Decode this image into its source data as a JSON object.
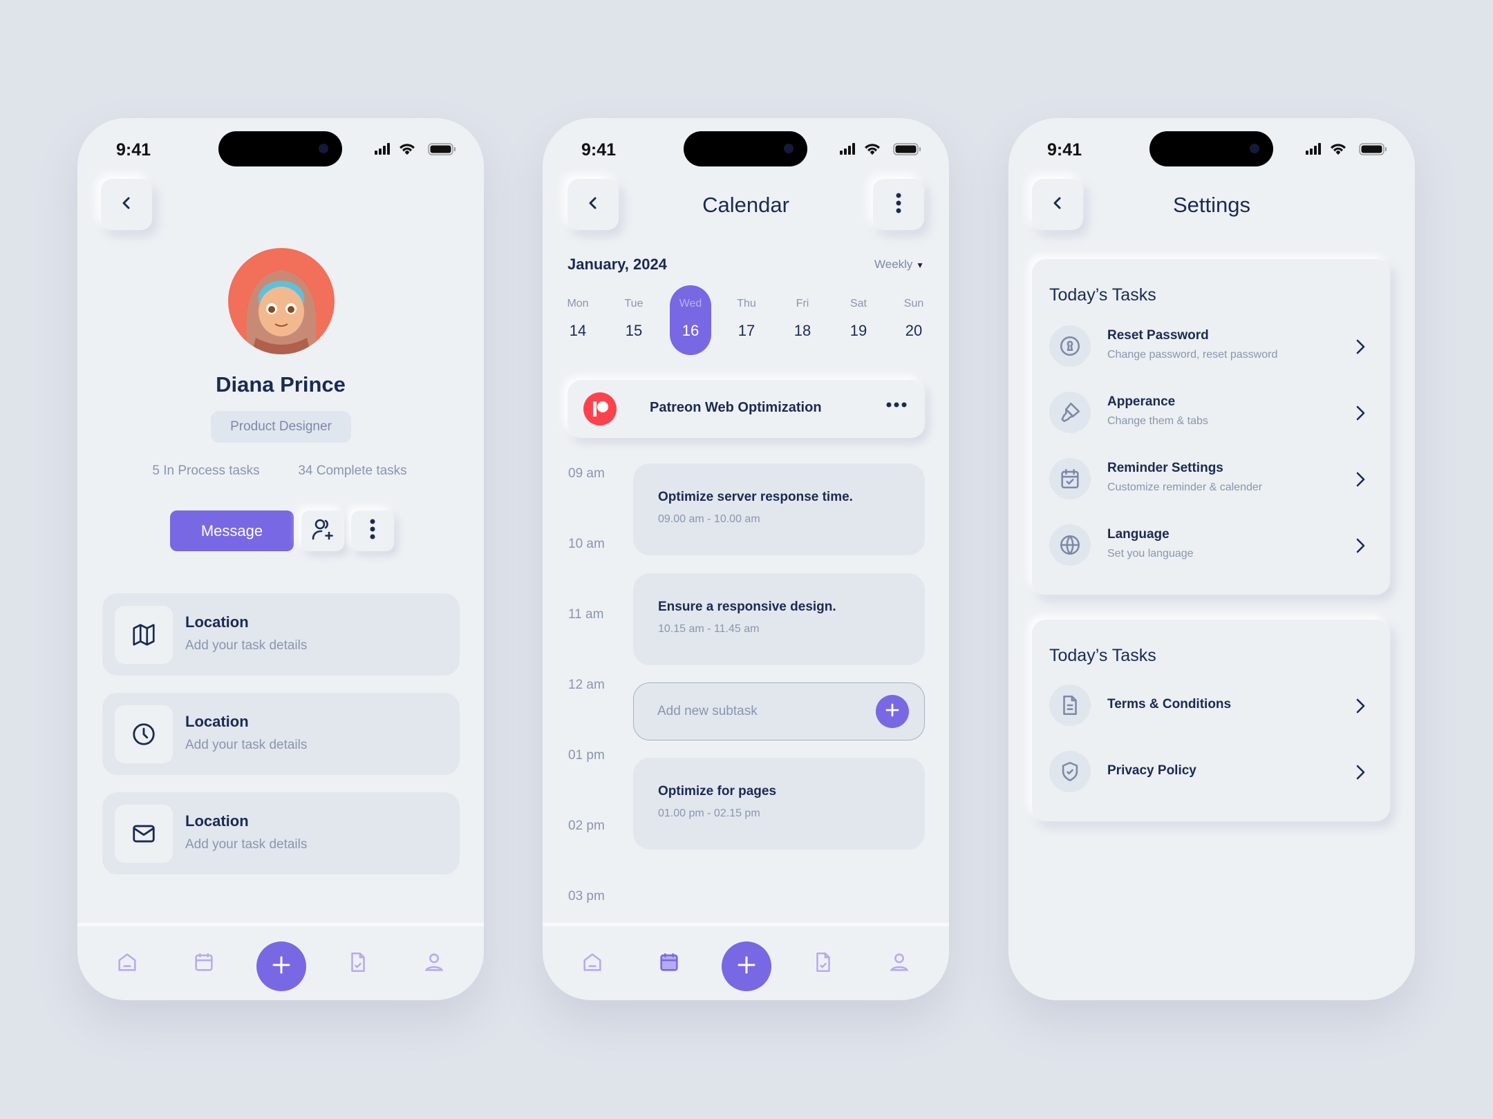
{
  "colors": {
    "accent": "#7868e3",
    "text": "#1b2a52",
    "muted": "#8a95ad",
    "background": "#dfe3ea",
    "patreon": "#fe424d"
  },
  "status_bar": {
    "time": "9:41"
  },
  "profile": {
    "name": "Diana Prince",
    "role": "Product Designer",
    "stats": [
      "5 In Process tasks",
      "34 Complete tasks"
    ],
    "message_label": "Message",
    "cards": [
      {
        "icon": "map-icon",
        "title": "Location",
        "subtitle": "Add your task details"
      },
      {
        "icon": "clock-icon",
        "title": "Location",
        "subtitle": "Add your task details"
      },
      {
        "icon": "mail-icon",
        "title": "Location",
        "subtitle": "Add your task details"
      }
    ]
  },
  "calendar": {
    "title": "Calendar",
    "month": "January, 2024",
    "view": "Weekly",
    "days": [
      {
        "label": "Mon",
        "num": "14"
      },
      {
        "label": "Tue",
        "num": "15"
      },
      {
        "label": "Wed",
        "num": "16",
        "selected": true
      },
      {
        "label": "Thu",
        "num": "17"
      },
      {
        "label": "Fri",
        "num": "18"
      },
      {
        "label": "Sat",
        "num": "19"
      },
      {
        "label": "Sun",
        "num": "20"
      }
    ],
    "project": "Patreon Web Optimization",
    "times": [
      "09 am",
      "10 am",
      "11 am",
      "12 am",
      "01 pm",
      "02 pm",
      "03 pm"
    ],
    "tasks": [
      {
        "title": "Optimize server response time.",
        "time": "09.00 am - 10.00 am"
      },
      {
        "title": "Ensure a responsive design.",
        "time": "10.15 am - 11.45 am"
      },
      {
        "title": "Optimize for pages",
        "time": "01.00 pm - 02.15 pm"
      }
    ],
    "subtask_placeholder": "Add new subtask"
  },
  "settings": {
    "title": "Settings",
    "sections": [
      {
        "title": "Today’s Tasks",
        "rows": [
          {
            "icon": "keyhole-icon",
            "title": "Reset Password",
            "subtitle": "Change password, reset password"
          },
          {
            "icon": "paint-brush-icon",
            "title": "Apperance",
            "subtitle": "Change them & tabs"
          },
          {
            "icon": "calendar-check-icon",
            "title": "Reminder Settings",
            "subtitle": "Customize reminder & calender"
          },
          {
            "icon": "globe-icon",
            "title": "Language",
            "subtitle": "Set you language"
          }
        ]
      },
      {
        "title": "Today’s Tasks",
        "rows": [
          {
            "icon": "document-icon",
            "title": "Terms & Conditions"
          },
          {
            "icon": "shield-check-icon",
            "title": "Privacy Policy"
          }
        ]
      }
    ]
  },
  "bottom_nav": {
    "items": [
      "home-icon",
      "calendar-icon",
      "plus-icon",
      "document-check-icon",
      "user-icon"
    ],
    "active": {
      "profile": null,
      "calendar": "calendar-icon",
      "settings": null
    }
  }
}
